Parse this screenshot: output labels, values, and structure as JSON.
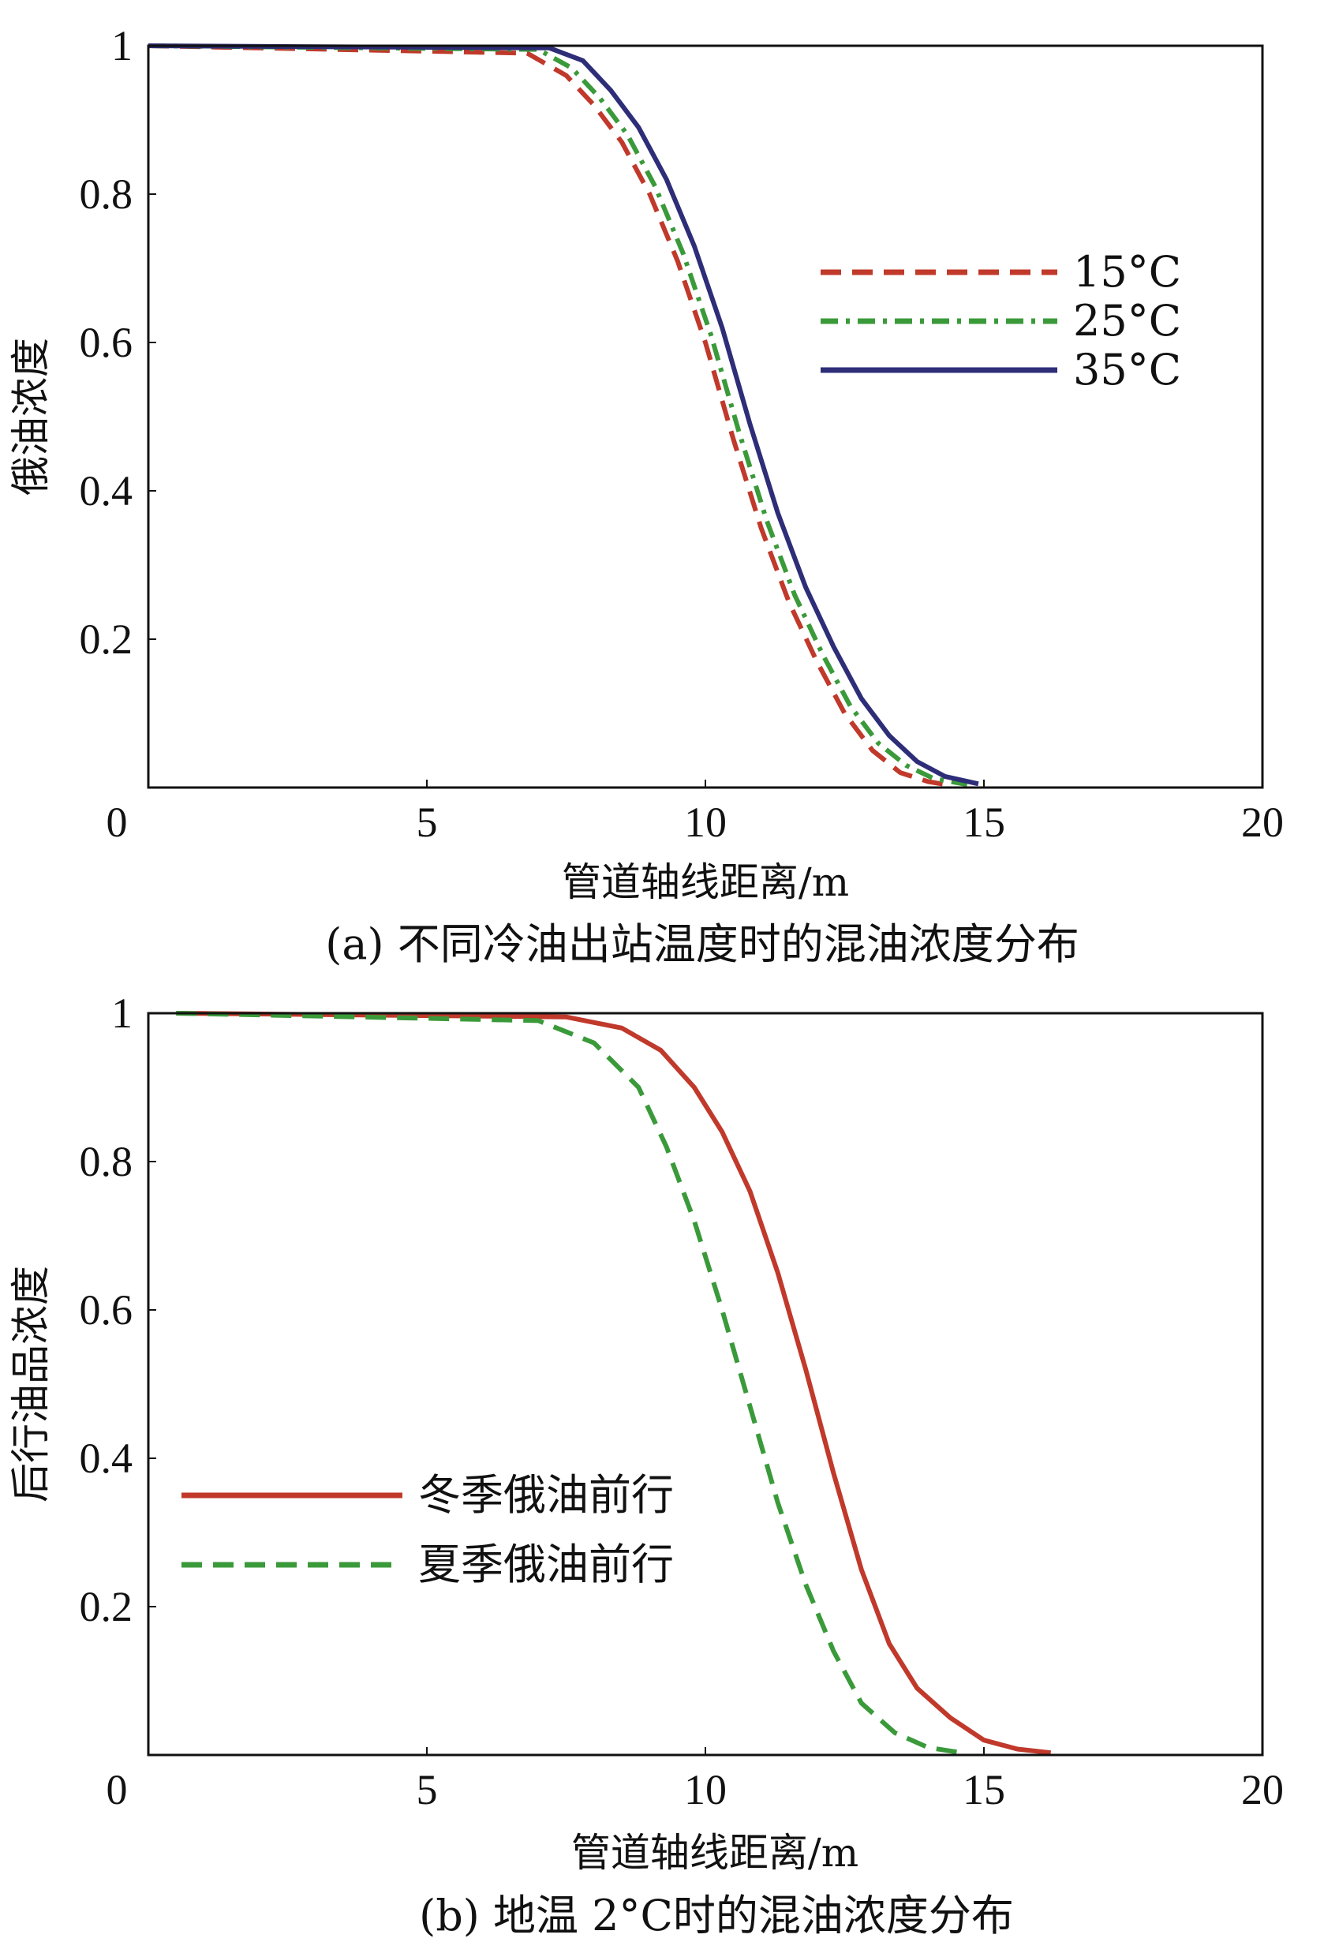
{
  "chart_data": [
    {
      "id": "a",
      "type": "line",
      "caption": "(a) 不同冷油出站温度时的混油浓度分布",
      "xlabel": "管道轴线距离/m",
      "ylabel": "俄油浓度",
      "xlim": [
        0,
        20
      ],
      "ylim": [
        0,
        1
      ],
      "x_ticks": [
        "0",
        "5",
        "10",
        "15",
        "20"
      ],
      "y_ticks": [
        "0.2",
        "0.4",
        "0.6",
        "0.8",
        "1"
      ],
      "grid": false,
      "legend_position": "right",
      "series": [
        {
          "name": "15°C",
          "color": "#c0392b",
          "dash": "dashed",
          "x": [
            0,
            6.8,
            7.5,
            8.0,
            8.5,
            9.0,
            9.5,
            10.0,
            10.5,
            11.0,
            11.5,
            12.0,
            12.5,
            13.0,
            13.5,
            14.0,
            14.4
          ],
          "y": [
            1,
            0.99,
            0.96,
            0.92,
            0.87,
            0.8,
            0.71,
            0.6,
            0.47,
            0.35,
            0.25,
            0.17,
            0.1,
            0.05,
            0.02,
            0.008,
            0.003
          ]
        },
        {
          "name": "25°C",
          "color": "#3a9a3a",
          "dash": "dashdot",
          "x": [
            0,
            7.0,
            7.6,
            8.1,
            8.6,
            9.1,
            9.6,
            10.1,
            10.6,
            11.1,
            11.6,
            12.1,
            12.6,
            13.1,
            13.6,
            14.1,
            14.7
          ],
          "y": [
            1,
            0.995,
            0.97,
            0.93,
            0.88,
            0.81,
            0.72,
            0.61,
            0.48,
            0.36,
            0.26,
            0.18,
            0.11,
            0.06,
            0.03,
            0.012,
            0.004
          ]
        },
        {
          "name": "35°C",
          "color": "#2e2d78",
          "dash": "solid",
          "x": [
            0,
            7.2,
            7.8,
            8.3,
            8.8,
            9.3,
            9.8,
            10.3,
            10.8,
            11.3,
            11.8,
            12.3,
            12.8,
            13.3,
            13.8,
            14.3,
            14.9
          ],
          "y": [
            1,
            0.997,
            0.98,
            0.94,
            0.89,
            0.82,
            0.73,
            0.62,
            0.49,
            0.37,
            0.27,
            0.19,
            0.12,
            0.07,
            0.035,
            0.015,
            0.005
          ]
        }
      ]
    },
    {
      "id": "b",
      "type": "line",
      "caption": "(b) 地温 2°C时的混油浓度分布",
      "xlabel": "管道轴线距离/m",
      "ylabel": "后行油品浓度",
      "xlim": [
        0,
        20
      ],
      "ylim": [
        0,
        1
      ],
      "x_ticks": [
        "0",
        "5",
        "10",
        "15",
        "20"
      ],
      "y_ticks": [
        "0.2",
        "0.4",
        "0.6",
        "0.8",
        "1"
      ],
      "grid": false,
      "legend_position": "bottom-left",
      "series": [
        {
          "name": "冬季俄油前行",
          "color": "#c0392b",
          "dash": "solid",
          "x": [
            0.5,
            7.5,
            8.5,
            9.2,
            9.8,
            10.3,
            10.8,
            11.3,
            11.8,
            12.3,
            12.8,
            13.3,
            13.8,
            14.4,
            15.0,
            15.6,
            16.2
          ],
          "y": [
            1,
            0.995,
            0.98,
            0.95,
            0.9,
            0.84,
            0.76,
            0.65,
            0.52,
            0.38,
            0.25,
            0.15,
            0.09,
            0.05,
            0.02,
            0.008,
            0.003
          ]
        },
        {
          "name": "夏季俄油前行",
          "color": "#3a9a3a",
          "dash": "dashed",
          "x": [
            0.5,
            7.0,
            8.0,
            8.8,
            9.3,
            9.8,
            10.3,
            10.8,
            11.3,
            11.8,
            12.3,
            12.8,
            13.4,
            14.0,
            14.6
          ],
          "y": [
            1,
            0.99,
            0.96,
            0.9,
            0.82,
            0.72,
            0.6,
            0.47,
            0.34,
            0.23,
            0.14,
            0.07,
            0.03,
            0.01,
            0.003
          ]
        }
      ]
    }
  ]
}
